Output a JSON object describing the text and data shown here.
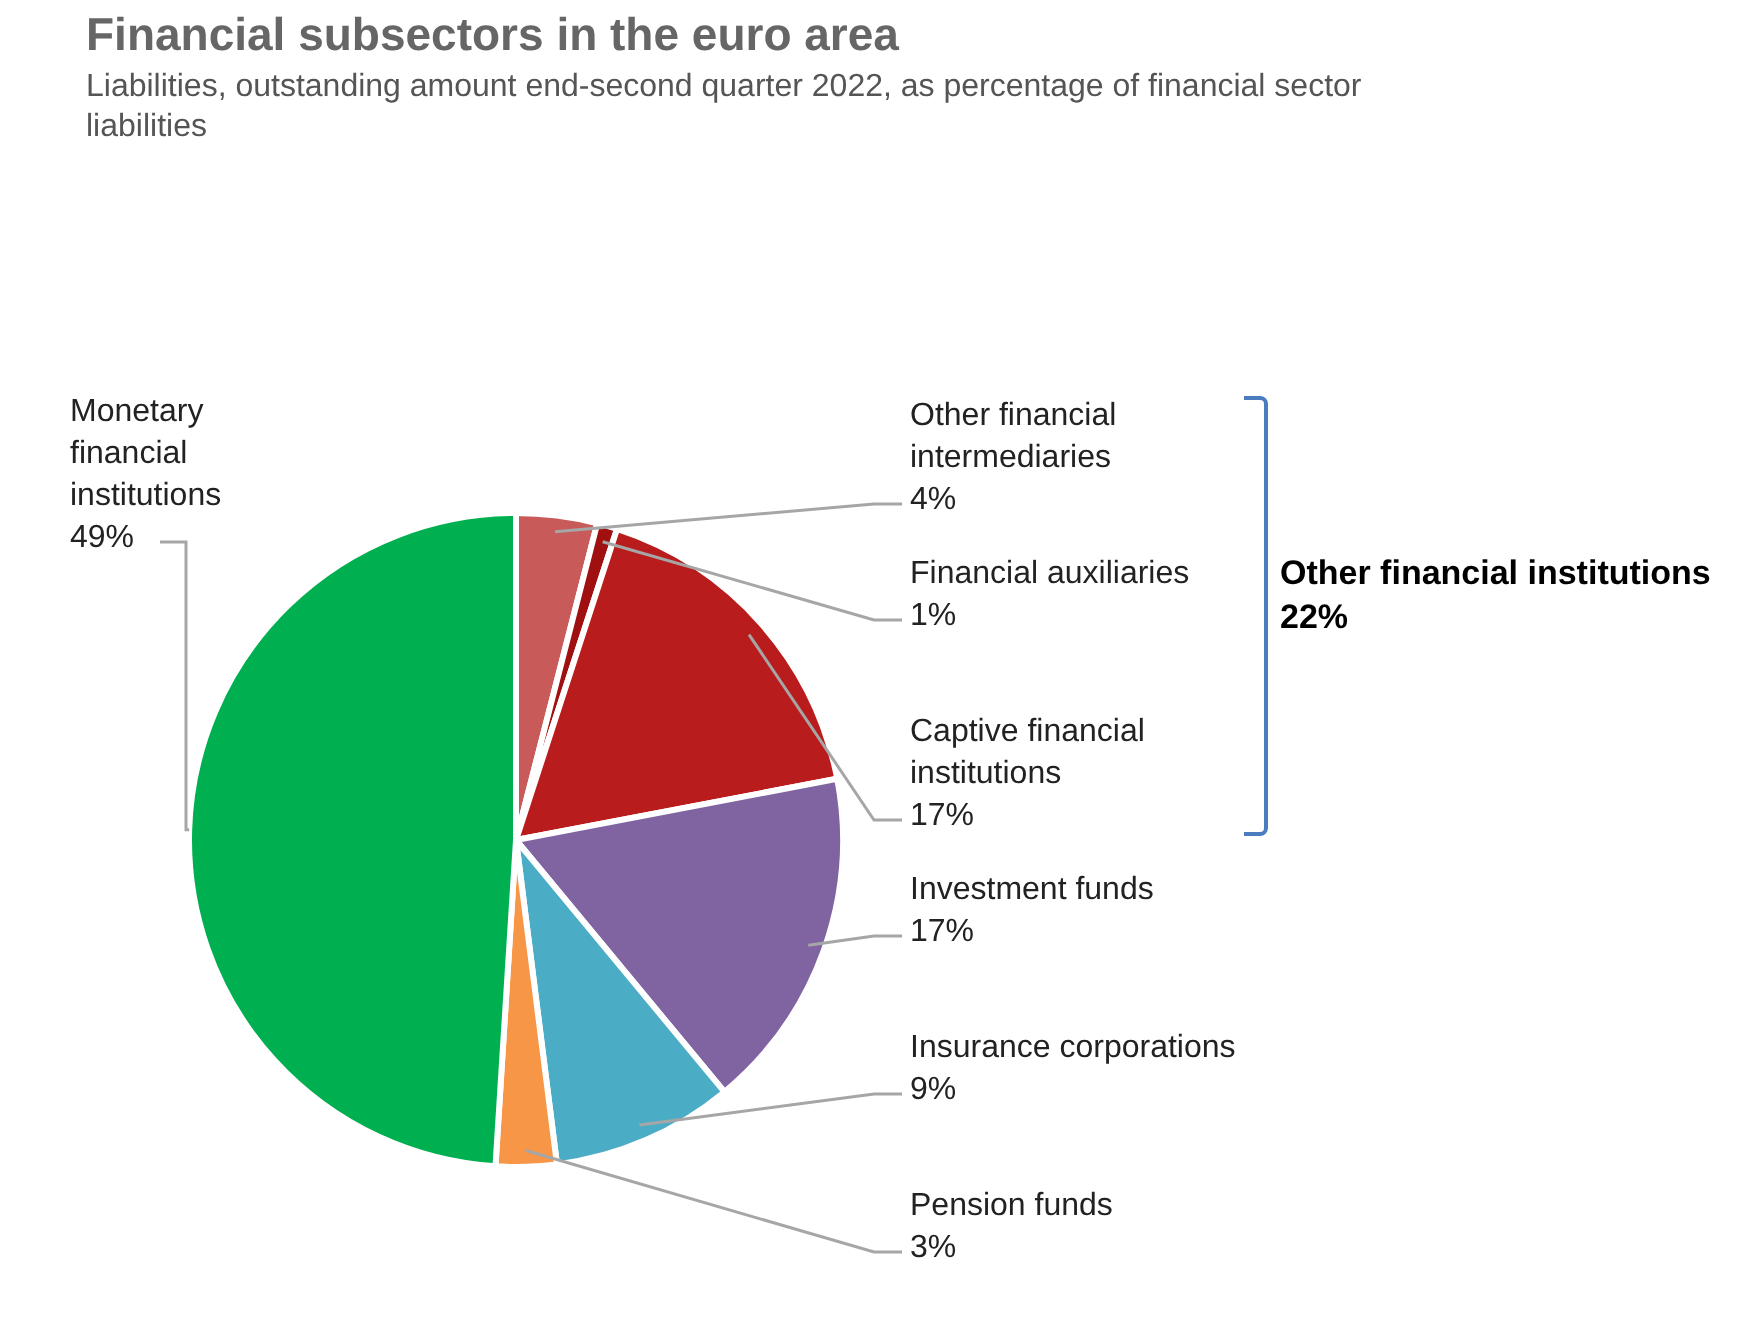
{
  "chart_data": {
    "type": "pie",
    "title": "Financial subsectors in the euro area",
    "subtitle": "Liabilities, outstanding amount end-second quarter 2022, as percentage of financial sector liabilities",
    "categories": [
      "Other financial intermediaries",
      "Financial auxiliaries",
      "Captive financial institutions",
      "Investment funds",
      "Insurance corporations",
      "Pension funds",
      "Monetary financial institutions"
    ],
    "values": [
      4,
      1,
      17,
      17,
      9,
      3,
      49
    ],
    "value_labels": [
      "4%",
      "1%",
      "17%",
      "17%",
      "9%",
      "3%",
      "49%"
    ],
    "colors": [
      "#c85a5a",
      "#a01010",
      "#b81c1c",
      "#8064a2",
      "#4bacc6",
      "#f79646",
      "#00b050"
    ],
    "annotations": [
      "Other financial institutions\n22%"
    ]
  }
}
